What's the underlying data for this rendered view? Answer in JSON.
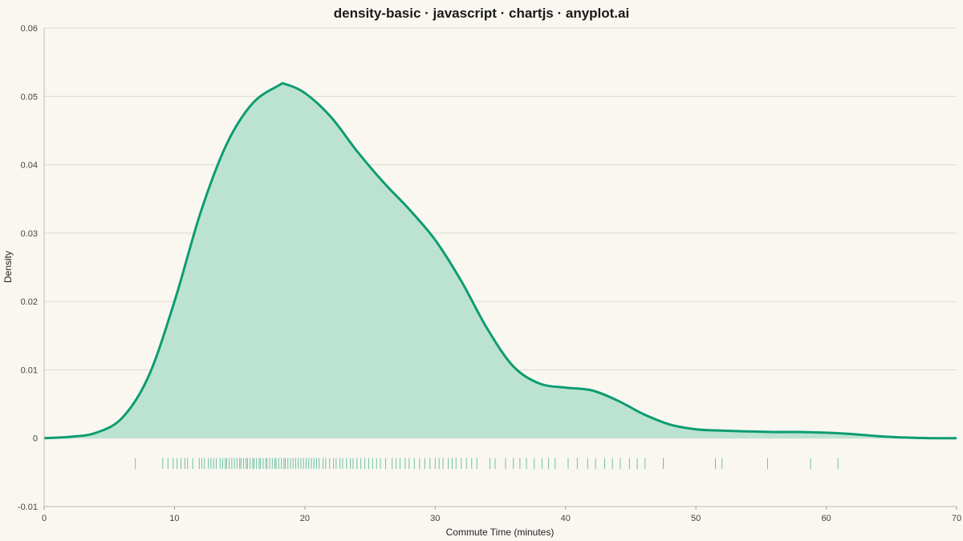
{
  "chart_data": {
    "type": "area",
    "title": "density-basic · javascript · chartjs · anyplot.ai",
    "xlabel": "Commute Time (minutes)",
    "ylabel": "Density",
    "xlim": [
      0,
      70
    ],
    "ylim": [
      -0.01,
      0.06
    ],
    "x_ticks": [
      "0",
      "10",
      "20",
      "30",
      "40",
      "50",
      "60",
      "70"
    ],
    "y_ticks": [
      "-0.01",
      "0",
      "0.01",
      "0.02",
      "0.03",
      "0.04",
      "0.05",
      "0.06"
    ],
    "grid": true,
    "legend": "none",
    "series": [
      {
        "x": [
          0,
          2,
          4,
          6,
          8,
          10,
          12,
          14,
          16,
          18,
          18.5,
          20,
          22,
          24,
          26,
          28,
          30,
          32,
          34,
          36,
          38,
          40,
          42,
          44,
          46,
          48,
          50,
          52,
          54,
          56,
          58,
          60,
          62,
          64,
          66,
          68,
          70
        ],
        "y": [
          0.0,
          0.0002,
          0.0008,
          0.003,
          0.009,
          0.02,
          0.033,
          0.043,
          0.049,
          0.0516,
          0.0518,
          0.0505,
          0.047,
          0.042,
          0.0375,
          0.0335,
          0.029,
          0.023,
          0.016,
          0.0105,
          0.008,
          0.0074,
          0.007,
          0.0055,
          0.0035,
          0.002,
          0.0013,
          0.0011,
          0.001,
          0.0009,
          0.0009,
          0.0008,
          0.0006,
          0.0003,
          0.0001,
          0.0,
          0.0
        ]
      }
    ],
    "rug": [
      7.0,
      9.1,
      9.5,
      9.9,
      10.2,
      10.5,
      10.8,
      11.0,
      11.4,
      11.9,
      12.1,
      12.3,
      12.6,
      12.8,
      13.0,
      13.2,
      13.5,
      13.7,
      13.9,
      14.0,
      14.2,
      14.4,
      14.6,
      14.8,
      15.0,
      15.1,
      15.3,
      15.5,
      15.6,
      15.8,
      16.0,
      16.1,
      16.3,
      16.5,
      16.6,
      16.8,
      17.0,
      17.1,
      17.3,
      17.5,
      17.7,
      17.8,
      18.0,
      18.2,
      18.4,
      18.5,
      18.7,
      18.9,
      19.1,
      19.3,
      19.5,
      19.7,
      19.9,
      20.1,
      20.3,
      20.5,
      20.7,
      20.9,
      21.1,
      21.4,
      21.6,
      21.9,
      22.2,
      22.4,
      22.7,
      22.9,
      23.2,
      23.5,
      23.7,
      24.0,
      24.3,
      24.6,
      24.9,
      25.2,
      25.5,
      25.8,
      26.2,
      26.7,
      27.0,
      27.3,
      27.7,
      28.0,
      28.4,
      28.8,
      29.2,
      29.6,
      30.0,
      30.3,
      30.6,
      31.0,
      31.3,
      31.6,
      32.0,
      32.4,
      32.8,
      33.2,
      34.2,
      34.6,
      35.4,
      36.0,
      36.5,
      37.0,
      37.6,
      38.2,
      38.7,
      39.2,
      40.2,
      40.9,
      41.7,
      42.3,
      43.0,
      43.6,
      44.2,
      44.9,
      45.5,
      46.1,
      47.5,
      51.5,
      52.0,
      55.5,
      58.8,
      60.9
    ],
    "colors": {
      "line": "#0D9C72",
      "fill": "#BCE3D1",
      "grid": "#DEDAD2",
      "background": "#FAF7F1"
    }
  }
}
